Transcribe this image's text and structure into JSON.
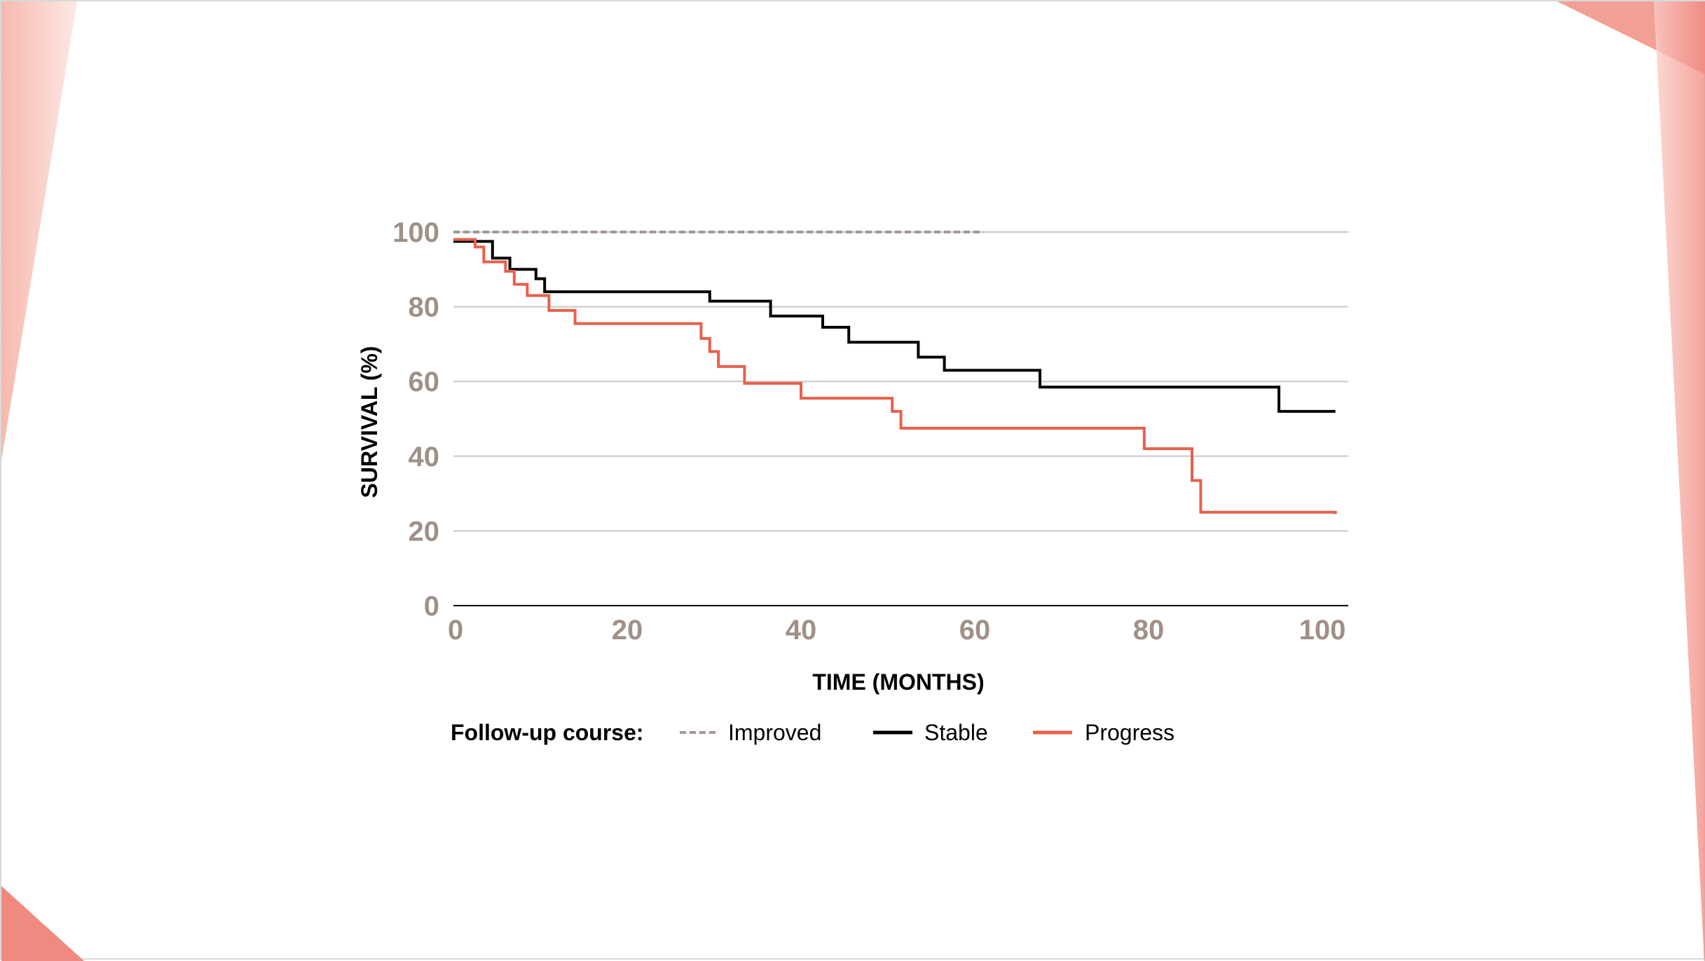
{
  "colors": {
    "improved": "#a39893",
    "stable": "#000000",
    "progress": "#e8604c",
    "grid": "#c8c8c8",
    "tick": "#a09088"
  },
  "chart_data": {
    "type": "line",
    "step": true,
    "title": "",
    "xlabel": "TIME (MONTHS)",
    "ylabel": "SURVIVAL (%)",
    "xlim": [
      0,
      102
    ],
    "ylim": [
      0,
      100
    ],
    "xticks": [
      0,
      20,
      40,
      60,
      80,
      100
    ],
    "yticks": [
      0,
      20,
      40,
      60,
      80,
      100
    ],
    "grid": true,
    "legend_title": "Follow-up course:",
    "legend_position": "bottom",
    "series": [
      {
        "name": "Improved",
        "key": "improved",
        "style": "dashed",
        "x": [
          0,
          61
        ],
        "y": [
          100,
          100
        ]
      },
      {
        "name": "Stable",
        "key": "stable",
        "style": "solid",
        "x": [
          0,
          2.5,
          4.5,
          6.5,
          9.5,
          10.5,
          29.5,
          36.5,
          42.5,
          45.5,
          53.5,
          56.5,
          67.5,
          95,
          101.5
        ],
        "y": [
          97.5,
          97.5,
          93,
          90,
          87.5,
          84,
          81.5,
          77.5,
          74.5,
          70.5,
          66.5,
          63,
          58.5,
          52,
          52
        ]
      },
      {
        "name": "Progress",
        "key": "progress",
        "style": "solid",
        "x": [
          0,
          2.5,
          3.5,
          6,
          7,
          8.5,
          11,
          14,
          28.5,
          29.5,
          30.5,
          33.5,
          40,
          50.5,
          51.5,
          79.5,
          85,
          86,
          101.5
        ],
        "y": [
          98,
          96,
          92,
          89.5,
          86,
          83,
          79,
          75.5,
          71.5,
          68,
          64,
          59.5,
          55.5,
          52,
          47.5,
          42,
          33.5,
          25,
          24.5
        ]
      }
    ]
  }
}
